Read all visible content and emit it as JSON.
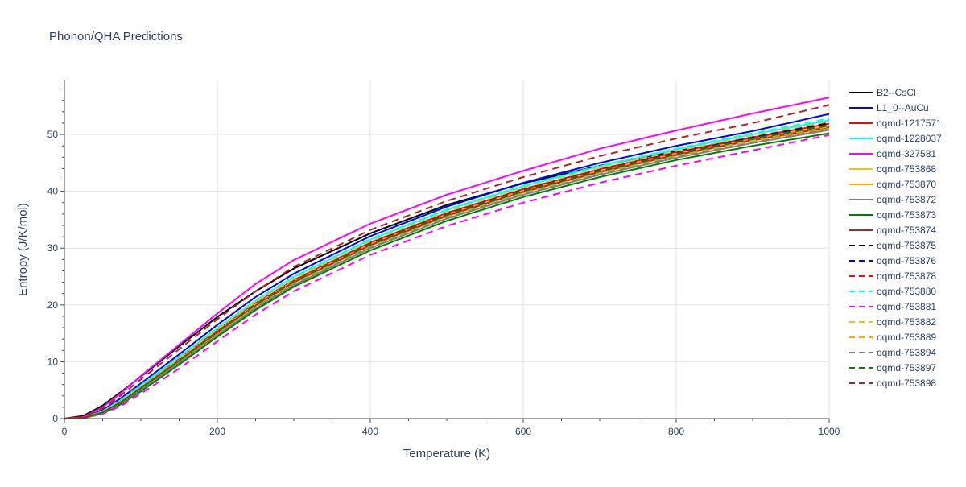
{
  "chart_data": {
    "type": "line",
    "title": "Phonon/QHA Predictions",
    "xlabel": "Temperature (K)",
    "ylabel": "Entropy (J/K/mol)",
    "xlim": [
      0,
      1000
    ],
    "ylim": [
      0,
      59.5
    ],
    "xticks": [
      0,
      200,
      400,
      600,
      800,
      1000
    ],
    "xtick_labels": [
      "0",
      "200",
      "400",
      "600",
      "800",
      "1000"
    ],
    "yticks": [
      0,
      10,
      20,
      30,
      40,
      50
    ],
    "ytick_labels": [
      "0",
      "10",
      "20",
      "30",
      "40",
      "50"
    ],
    "grid": true,
    "legend_position": "right",
    "x": [
      0,
      25,
      50,
      75,
      100,
      150,
      200,
      250,
      300,
      400,
      500,
      600,
      700,
      800,
      900,
      1000
    ],
    "series": [
      {
        "name": "B2--CsCl",
        "color": "#000000",
        "dash": "solid",
        "values": [
          0,
          0.5,
          2.3,
          4.8,
          7.4,
          12.7,
          17.9,
          22.4,
          26.4,
          32.6,
          37.6,
          41.4,
          44.5,
          47.1,
          49.3,
          51.4
        ]
      },
      {
        "name": "L1_0--AuCu",
        "color": "#0000ff",
        "dash": "solid",
        "values": [
          0,
          0.2,
          1.5,
          3.7,
          6.2,
          11.3,
          16.5,
          21.4,
          25.5,
          32.1,
          37.3,
          41.5,
          45.0,
          48.0,
          50.6,
          53.6
        ]
      },
      {
        "name": "oqmd-1217571",
        "color": "#ff0000",
        "dash": "solid",
        "values": [
          0,
          0.15,
          1.2,
          3.2,
          5.6,
          10.5,
          15.5,
          20.3,
          24.4,
          31.0,
          36.2,
          40.4,
          43.9,
          46.9,
          49.5,
          51.9
        ]
      },
      {
        "name": "oqmd-1228037",
        "color": "#00ffff",
        "dash": "solid",
        "values": [
          0,
          0.15,
          1.3,
          3.3,
          5.8,
          10.8,
          15.9,
          20.7,
          24.9,
          31.5,
          36.7,
          40.9,
          44.4,
          47.4,
          50.0,
          52.5
        ]
      },
      {
        "name": "oqmd-327581",
        "color": "#ff00ff",
        "dash": "solid",
        "values": [
          0,
          0.3,
          2.0,
          4.6,
          7.5,
          13.0,
          18.5,
          23.7,
          27.9,
          34.3,
          39.4,
          43.6,
          47.5,
          50.7,
          53.7,
          56.5
        ]
      },
      {
        "name": "oqmd-753868",
        "color": "#ffc000",
        "dash": "solid",
        "values": [
          0,
          0.15,
          1.15,
          3.1,
          5.5,
          10.3,
          15.3,
          20.1,
          24.2,
          30.7,
          35.9,
          40.1,
          43.6,
          46.6,
          49.2,
          51.5
        ]
      },
      {
        "name": "oqmd-753870",
        "color": "#ffa500",
        "dash": "solid",
        "values": [
          0,
          0.15,
          1.1,
          3.0,
          5.3,
          10.1,
          15.0,
          19.8,
          23.9,
          30.4,
          35.6,
          39.8,
          43.3,
          46.3,
          48.9,
          51.1
        ]
      },
      {
        "name": "oqmd-753872",
        "color": "#808080",
        "dash": "solid",
        "values": [
          0,
          0.1,
          1.0,
          2.8,
          5.1,
          9.8,
          14.7,
          19.4,
          23.5,
          30.0,
          35.2,
          39.4,
          42.9,
          45.9,
          48.5,
          50.8
        ]
      },
      {
        "name": "oqmd-753873",
        "color": "#008000",
        "dash": "solid",
        "values": [
          0,
          0.1,
          0.9,
          2.6,
          4.8,
          9.5,
          14.4,
          19.1,
          23.2,
          29.6,
          34.8,
          39.0,
          42.5,
          45.5,
          48.0,
          50.2
        ]
      },
      {
        "name": "oqmd-753874",
        "color": "#a52a2a",
        "dash": "solid",
        "values": [
          0,
          0.15,
          1.1,
          3.0,
          5.4,
          10.2,
          15.2,
          19.9,
          24.0,
          30.5,
          35.7,
          39.9,
          43.4,
          46.4,
          49.0,
          51.3
        ]
      },
      {
        "name": "oqmd-753875",
        "color": "#000000",
        "dash": "dash",
        "values": [
          0,
          0.15,
          1.2,
          3.2,
          5.6,
          10.5,
          15.5,
          20.3,
          24.4,
          31.0,
          36.2,
          40.4,
          43.9,
          46.9,
          49.5,
          52.0
        ]
      },
      {
        "name": "oqmd-753876",
        "color": "#0000ff",
        "dash": "dash",
        "values": [
          0,
          0.15,
          1.2,
          3.2,
          5.6,
          10.5,
          15.5,
          20.3,
          24.4,
          31.0,
          36.2,
          40.4,
          43.9,
          46.9,
          49.5,
          52.2
        ]
      },
      {
        "name": "oqmd-753878",
        "color": "#ff0000",
        "dash": "dash",
        "values": [
          0,
          0.15,
          1.15,
          3.1,
          5.5,
          10.4,
          15.4,
          20.2,
          24.3,
          30.8,
          36.0,
          40.2,
          43.7,
          46.7,
          49.3,
          51.7
        ]
      },
      {
        "name": "oqmd-753880",
        "color": "#00ffff",
        "dash": "dash",
        "values": [
          0,
          0.15,
          1.3,
          3.4,
          5.9,
          10.9,
          16.0,
          20.8,
          25.0,
          31.6,
          36.8,
          41.0,
          44.5,
          47.5,
          50.2,
          52.8
        ]
      },
      {
        "name": "oqmd-753881",
        "color": "#ff00ff",
        "dash": "dash",
        "values": [
          0,
          0.1,
          0.8,
          2.3,
          4.4,
          8.8,
          13.6,
          18.3,
          22.4,
          28.8,
          33.9,
          38.0,
          41.5,
          44.5,
          47.2,
          49.9
        ]
      },
      {
        "name": "oqmd-753882",
        "color": "#ffc000",
        "dash": "dash",
        "values": [
          0,
          0.15,
          1.2,
          3.2,
          5.6,
          10.6,
          15.7,
          20.5,
          24.6,
          31.2,
          36.4,
          40.6,
          44.1,
          47.1,
          49.8,
          52.3
        ]
      },
      {
        "name": "oqmd-753889",
        "color": "#ffa500",
        "dash": "dash",
        "values": [
          0,
          0.15,
          1.1,
          3.0,
          5.4,
          10.2,
          15.1,
          19.9,
          24.0,
          30.5,
          35.7,
          39.9,
          43.4,
          46.4,
          49.0,
          51.4
        ]
      },
      {
        "name": "oqmd-753894",
        "color": "#808080",
        "dash": "dash",
        "values": [
          0,
          0.1,
          1.0,
          2.8,
          5.1,
          9.8,
          14.7,
          19.5,
          23.6,
          30.1,
          35.3,
          39.5,
          43.0,
          46.0,
          48.6,
          50.9
        ]
      },
      {
        "name": "oqmd-753897",
        "color": "#008000",
        "dash": "dash",
        "values": [
          0,
          0.15,
          1.1,
          3.0,
          5.4,
          10.2,
          15.2,
          20.0,
          24.1,
          30.6,
          35.8,
          40.0,
          43.5,
          46.5,
          49.2,
          51.6
        ]
      },
      {
        "name": "oqmd-753898",
        "color": "#b22222",
        "dash": "dash",
        "values": [
          0,
          0.25,
          1.8,
          4.2,
          6.9,
          12.2,
          17.5,
          22.4,
          26.7,
          33.2,
          38.3,
          42.5,
          46.2,
          49.3,
          52.0,
          55.2
        ]
      }
    ]
  }
}
